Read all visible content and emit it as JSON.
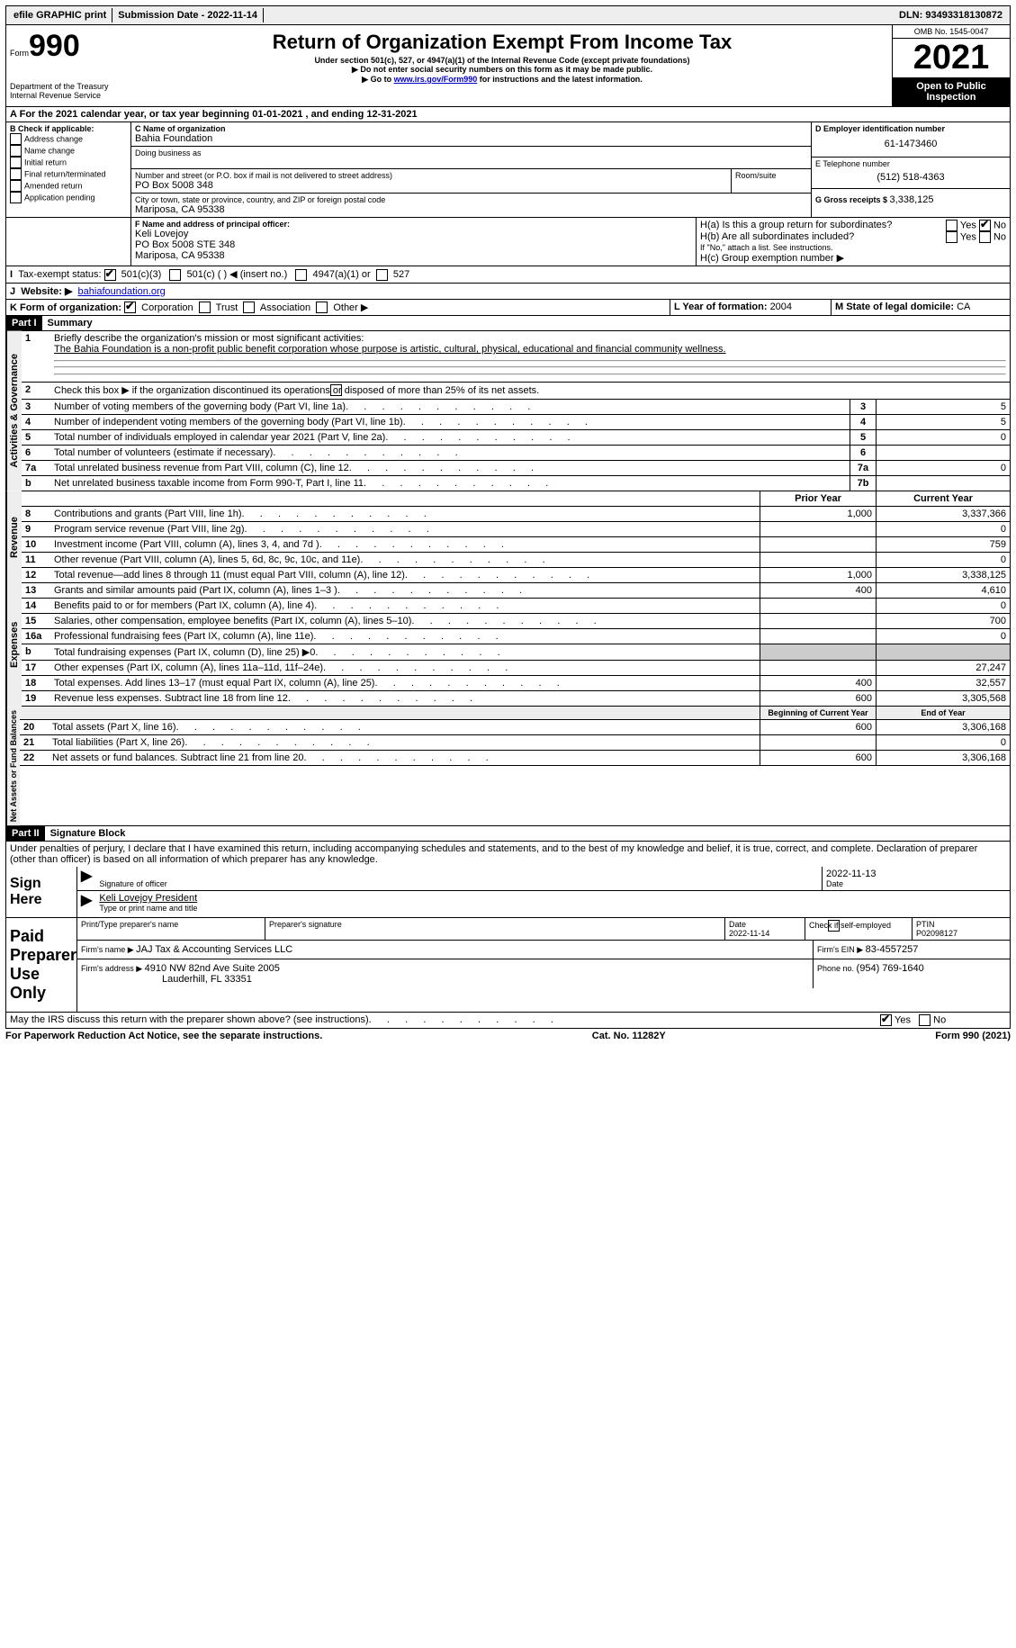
{
  "topbar": {
    "efile": "efile GRAPHIC print",
    "submission_label": "Submission Date - ",
    "submission_date": "2022-11-14",
    "dln_label": "DLN: ",
    "dln": "93493318130872"
  },
  "header": {
    "form_word": "Form",
    "form_no": "990",
    "dept": "Department of the Treasury",
    "irs": "Internal Revenue Service",
    "title": "Return of Organization Exempt From Income Tax",
    "sub1": "Under section 501(c), 527, or 4947(a)(1) of the Internal Revenue Code (except private foundations)",
    "sub2": "▶ Do not enter social security numbers on this form as it may be made public.",
    "sub3_pre": "▶ Go to ",
    "sub3_link": "www.irs.gov/Form990",
    "sub3_post": " for instructions and the latest information.",
    "omb": "OMB No. 1545-0047",
    "year": "2021",
    "open": "Open to Public Inspection"
  },
  "line_a": {
    "text_pre": "For the 2021 calendar year, or tax year beginning ",
    "begin": "01-01-2021",
    "mid": "   , and ending ",
    "end": "12-31-2021"
  },
  "box_b": {
    "label": "B Check if applicable:",
    "opts": [
      "Address change",
      "Name change",
      "Initial return",
      "Final return/terminated",
      "Amended return",
      "Application pending"
    ]
  },
  "box_c": {
    "label": "C Name of organization",
    "name": "Bahia Foundation",
    "dba": "Doing business as",
    "addr_label": "Number and street (or P.O. box if mail is not delivered to street address)",
    "room": "Room/suite",
    "addr": "PO Box 5008 348",
    "city_label": "City or town, state or province, country, and ZIP or foreign postal code",
    "city": "Mariposa, CA  95338"
  },
  "box_d": {
    "label": "D Employer identification number",
    "value": "61-1473460"
  },
  "box_e": {
    "label": "E Telephone number",
    "value": "(512) 518-4363"
  },
  "box_g": {
    "label": "G Gross receipts $ ",
    "value": "3,338,125"
  },
  "box_f": {
    "label": "F  Name and address of principal officer:",
    "name": "Keli Lovejoy",
    "l2": "PO Box 5008 STE 348",
    "l3": "Mariposa, CA  95338"
  },
  "box_h": {
    "ha": "H(a)  Is this a group return for subordinates?",
    "hb": "H(b)  Are all subordinates included?",
    "hb_note": "If \"No,\" attach a list. See instructions.",
    "hc": "H(c)  Group exemption number ▶",
    "yes": "Yes",
    "no": "No"
  },
  "box_i": {
    "label": "Tax-exempt status:",
    "o1": "501(c)(3)",
    "o2": "501(c) (  ) ◀ (insert no.)",
    "o3": "4947(a)(1) or",
    "o4": "527"
  },
  "box_j": {
    "label": "Website: ▶",
    "value": "bahiafoundation.org"
  },
  "box_k": {
    "label": "K Form of organization:",
    "o1": "Corporation",
    "o2": "Trust",
    "o3": "Association",
    "o4": "Other ▶"
  },
  "box_l": {
    "label": "L Year of formation: ",
    "value": "2004"
  },
  "box_m": {
    "label": "M State of legal domicile: ",
    "value": "CA"
  },
  "part1": {
    "hdr": "Part I",
    "title": "Summary",
    "l1_label": "Briefly describe the organization's mission or most significant activities:",
    "l1_text": "The Bahia Foundation is a non-profit public benefit corporation whose purpose is artistic, cultural, physical, educational and financial community wellness.",
    "l2": "Check this box ▶         if the organization discontinued its operations or disposed of more than 25% of its net assets.",
    "rows_ag": [
      {
        "n": "3",
        "t": "Number of voting members of the governing body (Part VI, line 1a)",
        "box": "3",
        "v": "5"
      },
      {
        "n": "4",
        "t": "Number of independent voting members of the governing body (Part VI, line 1b)",
        "box": "4",
        "v": "5"
      },
      {
        "n": "5",
        "t": "Total number of individuals employed in calendar year 2021 (Part V, line 2a)",
        "box": "5",
        "v": "0"
      },
      {
        "n": "6",
        "t": "Total number of volunteers (estimate if necessary)",
        "box": "6",
        "v": ""
      },
      {
        "n": "7a",
        "t": "Total unrelated business revenue from Part VIII, column (C), line 12",
        "box": "7a",
        "v": "0"
      },
      {
        "n": "b",
        "t": "Net unrelated business taxable income from Form 990-T, Part I, line 11",
        "box": "7b",
        "v": ""
      }
    ],
    "col_prior": "Prior Year",
    "col_current": "Current Year",
    "rows_rev": [
      {
        "n": "8",
        "t": "Contributions and grants (Part VIII, line 1h)",
        "p": "1,000",
        "c": "3,337,366"
      },
      {
        "n": "9",
        "t": "Program service revenue (Part VIII, line 2g)",
        "p": "",
        "c": "0"
      },
      {
        "n": "10",
        "t": "Investment income (Part VIII, column (A), lines 3, 4, and 7d )",
        "p": "",
        "c": "759"
      },
      {
        "n": "11",
        "t": "Other revenue (Part VIII, column (A), lines 5, 6d, 8c, 9c, 10c, and 11e)",
        "p": "",
        "c": "0"
      },
      {
        "n": "12",
        "t": "Total revenue—add lines 8 through 11 (must equal Part VIII, column (A), line 12)",
        "p": "1,000",
        "c": "3,338,125"
      }
    ],
    "rows_exp": [
      {
        "n": "13",
        "t": "Grants and similar amounts paid (Part IX, column (A), lines 1–3 )",
        "p": "400",
        "c": "4,610"
      },
      {
        "n": "14",
        "t": "Benefits paid to or for members (Part IX, column (A), line 4)",
        "p": "",
        "c": "0"
      },
      {
        "n": "15",
        "t": "Salaries, other compensation, employee benefits (Part IX, column (A), lines 5–10)",
        "p": "",
        "c": "700"
      },
      {
        "n": "16a",
        "t": "Professional fundraising fees (Part IX, column (A), line 11e)",
        "p": "",
        "c": "0"
      },
      {
        "n": "b",
        "t": "Total fundraising expenses (Part IX, column (D), line 25) ▶0",
        "p": "grey",
        "c": "grey"
      },
      {
        "n": "17",
        "t": "Other expenses (Part IX, column (A), lines 11a–11d, 11f–24e)",
        "p": "",
        "c": "27,247"
      },
      {
        "n": "18",
        "t": "Total expenses. Add lines 13–17 (must equal Part IX, column (A), line 25)",
        "p": "400",
        "c": "32,557"
      },
      {
        "n": "19",
        "t": "Revenue less expenses. Subtract line 18 from line 12",
        "p": "600",
        "c": "3,305,568"
      }
    ],
    "col_begin": "Beginning of Current Year",
    "col_end": "End of Year",
    "rows_net": [
      {
        "n": "20",
        "t": "Total assets (Part X, line 16)",
        "p": "600",
        "c": "3,306,168"
      },
      {
        "n": "21",
        "t": "Total liabilities (Part X, line 26)",
        "p": "",
        "c": "0"
      },
      {
        "n": "22",
        "t": "Net assets or fund balances. Subtract line 21 from line 20",
        "p": "600",
        "c": "3,306,168"
      }
    ],
    "vtab_ag": "Activities & Governance",
    "vtab_rev": "Revenue",
    "vtab_exp": "Expenses",
    "vtab_net": "Net Assets or Fund Balances"
  },
  "part2": {
    "hdr": "Part II",
    "title": "Signature Block",
    "decl": "Under penalties of perjury, I declare that I have examined this return, including accompanying schedules and statements, and to the best of my knowledge and belief, it is true, correct, and complete. Declaration of preparer (other than officer) is based on all information of which preparer has any knowledge.",
    "sign_here": "Sign Here",
    "sig_officer": "Signature of officer",
    "sig_date": "2022-11-13",
    "date_lbl": "Date",
    "officer_name": "Keli Lovejoy  President",
    "type_name": "Type or print name and title",
    "paid": "Paid Preparer Use Only",
    "p_name_lbl": "Print/Type preparer's name",
    "p_sig_lbl": "Preparer's signature",
    "p_date_lbl": "Date",
    "p_date": "2022-11-14",
    "p_check": "Check          if self-employed",
    "ptin_lbl": "PTIN",
    "ptin": "P02098127",
    "firm_name_lbl": "Firm's name      ▶ ",
    "firm_name": "JAJ Tax & Accounting Services LLC",
    "firm_ein_lbl": "Firm's EIN ▶ ",
    "firm_ein": "83-4557257",
    "firm_addr_lbl": "Firm's address ▶ ",
    "firm_addr": "4910 NW 82nd Ave Suite 2005",
    "firm_addr2": "Lauderhill, FL  33351",
    "phone_lbl": "Phone no. ",
    "phone": "(954) 769-1640",
    "may_irs": "May the IRS discuss this return with the preparer shown above? (see instructions)",
    "yes": "Yes",
    "no": "No"
  },
  "footer": {
    "l": "For Paperwork Reduction Act Notice, see the separate instructions.",
    "m": "Cat. No. 11282Y",
    "r": "Form 990 (2021)"
  }
}
